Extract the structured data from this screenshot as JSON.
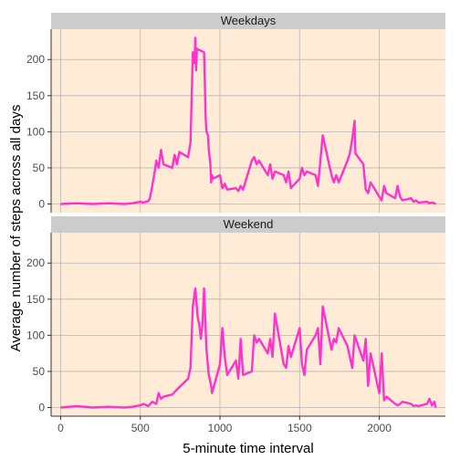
{
  "chart_data": {
    "type": "line",
    "xlabel": "5-minute time interval",
    "ylabel": "Average number of steps across all days",
    "xlim": [
      -60,
      2415
    ],
    "ylim": [
      -12,
      242
    ],
    "x_ticks": [
      0,
      500,
      1000,
      1500,
      2000
    ],
    "y_ticks": [
      0,
      50,
      100,
      150,
      200
    ],
    "grid": true,
    "legend": "none",
    "line_color": "#ff33cc",
    "panel_background": "#ffebd6",
    "strip_background": "#cccccc",
    "panels": [
      {
        "name": "Weekdays",
        "x": [
          0,
          100,
          200,
          300,
          400,
          450,
          500,
          520,
          550,
          560,
          575,
          590,
          600,
          615,
          630,
          645,
          700,
          715,
          730,
          745,
          800,
          815,
          830,
          840,
          845,
          850,
          855,
          900,
          905,
          910,
          915,
          925,
          930,
          940,
          945,
          950,
          955,
          1000,
          1015,
          1030,
          1045,
          1100,
          1115,
          1130,
          1145,
          1200,
          1215,
          1230,
          1245,
          1300,
          1315,
          1330,
          1345,
          1400,
          1415,
          1430,
          1445,
          1500,
          1515,
          1530,
          1545,
          1600,
          1615,
          1630,
          1645,
          1700,
          1715,
          1730,
          1745,
          1800,
          1815,
          1830,
          1845,
          1850,
          1900,
          1915,
          1930,
          1945,
          2000,
          2015,
          2030,
          2045,
          2100,
          2115,
          2130,
          2145,
          2200,
          2215,
          2230,
          2245,
          2300,
          2315,
          2330,
          2345,
          2355
        ],
        "y": [
          0,
          1,
          0,
          1,
          0,
          1,
          3,
          2,
          4,
          8,
          25,
          45,
          60,
          50,
          75,
          55,
          50,
          68,
          55,
          72,
          65,
          85,
          210,
          195,
          230,
          185,
          215,
          210,
          170,
          120,
          100,
          95,
          75,
          55,
          30,
          40,
          35,
          40,
          22,
          28,
          20,
          22,
          18,
          25,
          20,
          60,
          65,
          55,
          60,
          40,
          55,
          35,
          45,
          40,
          30,
          45,
          22,
          35,
          50,
          40,
          45,
          40,
          25,
          60,
          95,
          40,
          30,
          40,
          30,
          60,
          70,
          90,
          115,
          70,
          55,
          20,
          15,
          30,
          10,
          5,
          25,
          15,
          8,
          25,
          10,
          5,
          8,
          3,
          5,
          2,
          3,
          1,
          2,
          1,
          0
        ]
      },
      {
        "name": "Weekend",
        "x": [
          0,
          100,
          200,
          300,
          400,
          450,
          500,
          520,
          550,
          575,
          600,
          615,
          630,
          645,
          700,
          730,
          800,
          815,
          830,
          845,
          860,
          870,
          880,
          890,
          900,
          915,
          930,
          945,
          950,
          1000,
          1015,
          1030,
          1045,
          1100,
          1115,
          1130,
          1145,
          1200,
          1215,
          1230,
          1245,
          1300,
          1315,
          1330,
          1345,
          1400,
          1415,
          1430,
          1445,
          1500,
          1515,
          1530,
          1545,
          1600,
          1615,
          1630,
          1645,
          1700,
          1715,
          1730,
          1745,
          1800,
          1815,
          1830,
          1845,
          1900,
          1915,
          1930,
          1945,
          2000,
          2015,
          2030,
          2045,
          2100,
          2115,
          2130,
          2145,
          2200,
          2215,
          2230,
          2245,
          2300,
          2315,
          2330,
          2345,
          2355
        ],
        "y": [
          0,
          2,
          0,
          1,
          0,
          1,
          3,
          5,
          2,
          8,
          5,
          20,
          12,
          15,
          18,
          25,
          40,
          55,
          140,
          165,
          125,
          115,
          95,
          115,
          165,
          80,
          45,
          30,
          20,
          60,
          110,
          70,
          45,
          65,
          40,
          95,
          45,
          50,
          100,
          90,
          95,
          75,
          95,
          70,
          130,
          60,
          55,
          85,
          70,
          110,
          60,
          45,
          80,
          100,
          110,
          60,
          140,
          80,
          95,
          90,
          110,
          85,
          70,
          55,
          100,
          65,
          95,
          30,
          75,
          20,
          75,
          10,
          15,
          5,
          3,
          5,
          8,
          5,
          2,
          3,
          2,
          5,
          12,
          3,
          8,
          0
        ]
      }
    ]
  }
}
